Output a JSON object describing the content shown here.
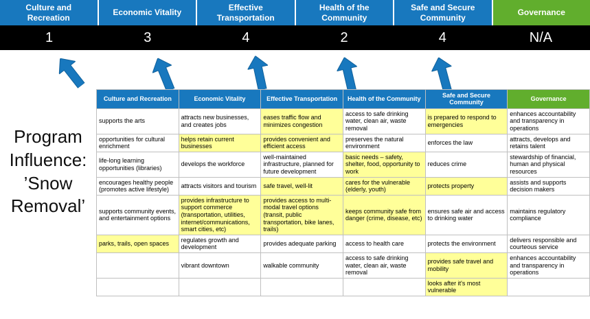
{
  "title": "Program Influence: ’Snow Removal’",
  "colors": {
    "header_blue": "#1878BE",
    "header_green": "#61AE2D",
    "highlight_yellow": "#FFFF99",
    "grid_border": "#BFBFBF",
    "score_bar_bg": "#000000",
    "arrow_blue": "#1878BE"
  },
  "summary": {
    "columns": [
      {
        "label": "Culture and Recreation",
        "score": "1",
        "accent": "blue"
      },
      {
        "label": "Economic Vitality",
        "score": "3",
        "accent": "blue"
      },
      {
        "label": "Effective Transportation",
        "score": "4",
        "accent": "blue"
      },
      {
        "label": "Health of the Community",
        "score": "2",
        "accent": "blue"
      },
      {
        "label": "Safe and Secure Community",
        "score": "4",
        "accent": "blue"
      },
      {
        "label": "Governance",
        "score": "N/A",
        "accent": "green"
      }
    ]
  },
  "table": {
    "headers": [
      {
        "label": "Culture and Recreation",
        "accent": "blue"
      },
      {
        "label": "Economic Vitality",
        "accent": "blue"
      },
      {
        "label": "Effective Transportation",
        "accent": "blue"
      },
      {
        "label": "Health of the Community",
        "accent": "blue"
      },
      {
        "label": "Safe and Secure Community",
        "accent": "blue"
      },
      {
        "label": "Governance",
        "accent": "green"
      }
    ],
    "rows": [
      [
        {
          "text": "supports the arts",
          "highlight": false
        },
        {
          "text": "attracts new businesses, and creates jobs",
          "highlight": false
        },
        {
          "text": "eases traffic flow and minimizes congestion",
          "highlight": true
        },
        {
          "text": "access to safe drinking water, clean air, waste removal",
          "highlight": false
        },
        {
          "text": "is prepared to respond to emergencies",
          "highlight": true
        },
        {
          "text": "enhances accountability and transparency in operations",
          "highlight": false
        }
      ],
      [
        {
          "text": "opportunities for cultural enrichment",
          "highlight": false
        },
        {
          "text": "helps retain current businesses",
          "highlight": true
        },
        {
          "text": "provides convenient and efficient access",
          "highlight": true
        },
        {
          "text": "preserves the natural environment",
          "highlight": false
        },
        {
          "text": "enforces the law",
          "highlight": false
        },
        {
          "text": "attracts, develops and retains talent",
          "highlight": false
        }
      ],
      [
        {
          "text": "life-long learning opportunities (libraries)",
          "highlight": false
        },
        {
          "text": "develops the workforce",
          "highlight": false
        },
        {
          "text": "well-maintained infrastructure, planned for future development",
          "highlight": false
        },
        {
          "text": "basic needs – safety, shelter, food, opportunity to work",
          "highlight": true
        },
        {
          "text": "reduces crime",
          "highlight": false
        },
        {
          "text": "stewardship of financial, human and physical resources",
          "highlight": false
        }
      ],
      [
        {
          "text": "encourages healthy people (promotes active lifestyle)",
          "highlight": false
        },
        {
          "text": "attracts visitors and tourism",
          "highlight": false
        },
        {
          "text": "safe travel, well-lit",
          "highlight": true
        },
        {
          "text": "cares for the vulnerable (elderly, youth)",
          "highlight": true
        },
        {
          "text": "protects property",
          "highlight": true
        },
        {
          "text": "assists and supports decision makers",
          "highlight": false
        }
      ],
      [
        {
          "text": "supports community events, and entertainment options",
          "highlight": false
        },
        {
          "text": "provides infrastructure to support commerce (transportation, utilities, internet/communications, smart cities, etc)",
          "highlight": true
        },
        {
          "text": "provides access to multi-modal travel options (transit, public transportation, bike lanes, trails)",
          "highlight": true
        },
        {
          "text": "keeps community safe from danger (crime, disease, etc)",
          "highlight": true
        },
        {
          "text": "ensures safe air and access to drinking water",
          "highlight": false
        },
        {
          "text": "maintains regulatory compliance",
          "highlight": false
        }
      ],
      [
        {
          "text": "parks, trails, open spaces",
          "highlight": true
        },
        {
          "text": "regulates growth and development",
          "highlight": false
        },
        {
          "text": "provides adequate parking",
          "highlight": false
        },
        {
          "text": "access to health care",
          "highlight": false
        },
        {
          "text": "protects the environment",
          "highlight": false
        },
        {
          "text": "delivers responsible and courteous service",
          "highlight": false
        }
      ],
      [
        {
          "text": "",
          "highlight": false
        },
        {
          "text": "vibrant downtown",
          "highlight": false
        },
        {
          "text": "walkable community",
          "highlight": false
        },
        {
          "text": "access to safe drinking water, clean air, waste removal",
          "highlight": false
        },
        {
          "text": "provides safe travel and mobility",
          "highlight": true
        },
        {
          "text": "enhances accountability and transparency in operations",
          "highlight": false
        }
      ],
      [
        {
          "text": "",
          "highlight": false
        },
        {
          "text": "",
          "highlight": false
        },
        {
          "text": "",
          "highlight": false
        },
        {
          "text": "",
          "highlight": false
        },
        {
          "text": "looks after it's most vulnerable",
          "highlight": true
        },
        {
          "text": "",
          "highlight": false
        }
      ]
    ]
  }
}
